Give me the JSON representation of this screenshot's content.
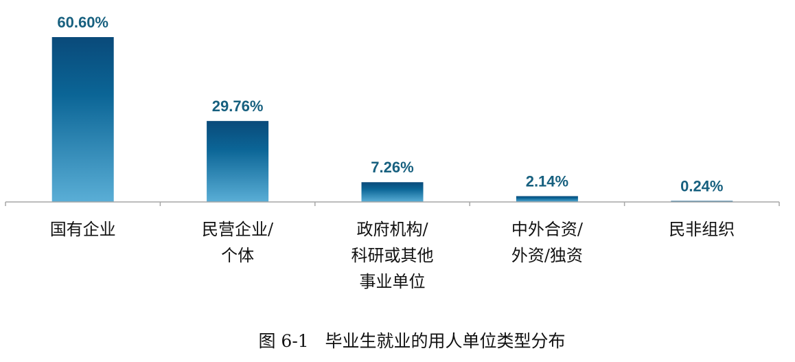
{
  "chart_data": {
    "type": "bar",
    "categories": [
      [
        "国有企业"
      ],
      [
        "民营企业/",
        "个体"
      ],
      [
        "政府机构/",
        "科研或其他",
        "事业单位"
      ],
      [
        "中外合资/",
        "外资/独资"
      ],
      [
        "民非组织"
      ]
    ],
    "values": [
      60.6,
      29.76,
      7.26,
      2.14,
      0.24
    ],
    "value_labels": [
      "60.60%",
      "29.76%",
      "7.26%",
      "2.14%",
      "0.24%"
    ],
    "ylim": [
      0,
      60.6
    ],
    "grid": false,
    "legend": "none",
    "caption": "图 6-1   毕业生就业的用人单位类型分布",
    "colors": {
      "bar_top": "#0a4a7a",
      "bar_mid": "#0b6596",
      "bar_bottom": "#5aaed6",
      "value_label": "#17607f",
      "axis": "#a6a6a6"
    }
  }
}
